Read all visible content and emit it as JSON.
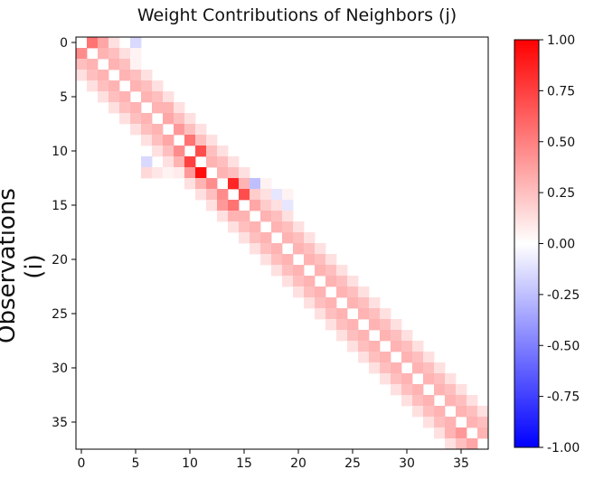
{
  "chart_data": {
    "type": "heatmap",
    "title": "Weight Contributions of Neighbors (j)",
    "xlabel": "",
    "ylabel": "Observations (i)",
    "n_rows": 38,
    "n_cols": 38,
    "x_ticks": [
      0,
      5,
      10,
      15,
      20,
      25,
      30,
      35
    ],
    "y_ticks": [
      0,
      5,
      10,
      15,
      20,
      25,
      30,
      35
    ],
    "colorbar": {
      "range": [
        -1.0,
        1.0
      ],
      "ticks": [
        "-1.00",
        "-0.75",
        "-0.50",
        "-0.25",
        "0.00",
        "0.25",
        "0.50",
        "0.75",
        "1.00"
      ],
      "colormap": "bwr"
    },
    "default_band": [
      {
        "offset": 1,
        "value": 0.3
      },
      {
        "offset": 2,
        "value": 0.25
      },
      {
        "offset": 3,
        "value": 0.12
      }
    ],
    "cells": [
      [
        0,
        1,
        0.55
      ],
      [
        0,
        2,
        0.35
      ],
      [
        0,
        5,
        -0.15
      ],
      [
        1,
        0,
        0.45
      ],
      [
        1,
        5,
        0.05
      ],
      [
        2,
        5,
        0.05
      ],
      [
        6,
        8,
        0.3
      ],
      [
        7,
        8,
        0.35
      ],
      [
        8,
        9,
        0.4
      ],
      [
        9,
        8,
        0.35
      ],
      [
        9,
        10,
        0.55
      ],
      [
        10,
        9,
        0.45
      ],
      [
        10,
        11,
        0.7
      ],
      [
        11,
        6,
        -0.15
      ],
      [
        11,
        9,
        0.3
      ],
      [
        11,
        10,
        0.75
      ],
      [
        12,
        6,
        0.15
      ],
      [
        12,
        7,
        0.1
      ],
      [
        12,
        8,
        0.05
      ],
      [
        12,
        9,
        0.08
      ],
      [
        12,
        10,
        0.4
      ],
      [
        12,
        11,
        0.95
      ],
      [
        13,
        11,
        0.3
      ],
      [
        13,
        12,
        0.45
      ],
      [
        13,
        14,
        0.85
      ],
      [
        13,
        15,
        0.3
      ],
      [
        13,
        16,
        -0.25
      ],
      [
        13,
        17,
        0.05
      ],
      [
        14,
        13,
        0.45
      ],
      [
        14,
        15,
        0.7
      ],
      [
        14,
        16,
        0.2
      ],
      [
        14,
        18,
        -0.1
      ],
      [
        14,
        19,
        0.05
      ],
      [
        15,
        13,
        0.4
      ],
      [
        15,
        14,
        0.55
      ],
      [
        15,
        16,
        0.35
      ],
      [
        15,
        17,
        0.2
      ],
      [
        15,
        19,
        -0.1
      ],
      [
        16,
        14,
        0.3
      ],
      [
        36,
        35,
        0.4
      ],
      [
        36,
        34,
        0.3
      ],
      [
        37,
        36,
        0.35
      ]
    ]
  }
}
